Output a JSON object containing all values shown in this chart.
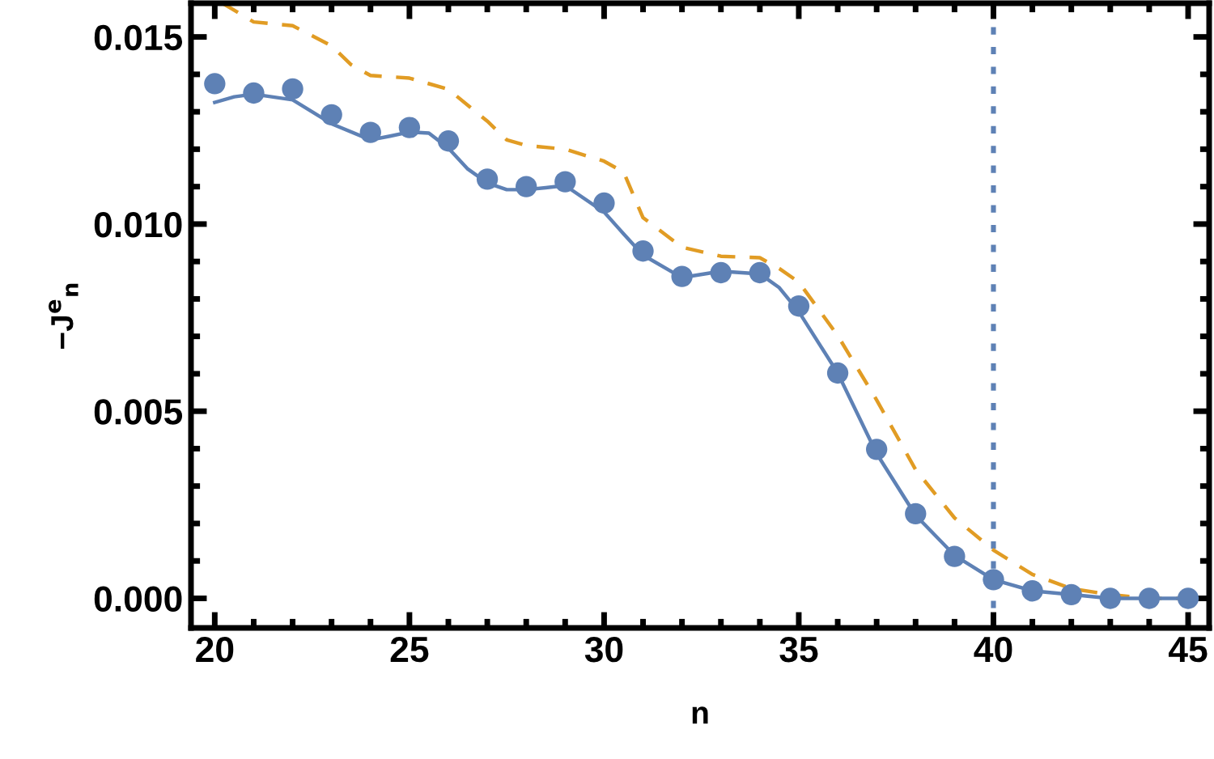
{
  "chart_data": {
    "type": "line",
    "xlabel": "n",
    "ylabel": "−J$^{e}$$_{n}$",
    "xlim": [
      19.39,
      45.54
    ],
    "ylim": [
      -0.00079,
      0.0159
    ],
    "xticks": [
      20,
      25,
      30,
      35,
      40,
      45
    ],
    "yticks": [
      {
        "value": 0,
        "label": "0.000"
      },
      {
        "value": 0.005,
        "label": "0.005"
      },
      {
        "value": 0.01,
        "label": "0.010"
      },
      {
        "value": 0.015,
        "label": "0.015"
      }
    ],
    "grid": false,
    "legend": false,
    "ref_lines": [
      {
        "axis": "x",
        "value": 40,
        "color": "#5e81b5",
        "line_style": "dotted"
      }
    ],
    "series": [
      {
        "color": "#e19c24",
        "line_style": "dashed",
        "x": [
          20.2,
          21,
          22,
          23,
          23.5,
          24,
          25,
          26,
          27,
          27.5,
          28,
          29,
          30,
          30.5,
          31,
          32,
          33,
          34,
          34.5,
          35,
          36,
          37,
          38,
          39,
          40,
          41,
          42,
          43,
          44,
          45
        ],
        "values": [
          0.0159,
          0.0154,
          0.0153,
          0.01476,
          0.01426,
          0.01397,
          0.0139,
          0.0136,
          0.01275,
          0.01225,
          0.0121,
          0.012,
          0.01168,
          0.01139,
          0.01017,
          0.00938,
          0.00914,
          0.0091,
          0.00881,
          0.00845,
          0.00702,
          0.0053,
          0.00344,
          0.00215,
          0.00129,
          0.00064,
          0.00026,
          0.0001,
          0,
          0
        ]
      },
      {
        "color": "#5e81b5",
        "line_style": "solid",
        "x": [
          20,
          20.5,
          21,
          22,
          22.5,
          23,
          24,
          24.5,
          25,
          25.5,
          26,
          26.5,
          27,
          27.5,
          28,
          28.5,
          29,
          30,
          30.5,
          31,
          32,
          33,
          34,
          34.5,
          35,
          36,
          37,
          38,
          39,
          40,
          41,
          42,
          43,
          44,
          45
        ],
        "values": [
          0.01325,
          0.0134,
          0.01347,
          0.01332,
          0.013,
          0.01268,
          0.01225,
          0.01235,
          0.01246,
          0.01243,
          0.01203,
          0.01147,
          0.0111,
          0.01092,
          0.01092,
          0.01097,
          0.01103,
          0.01032,
          0.00974,
          0.00917,
          0.00857,
          0.00874,
          0.00867,
          0.0083,
          0.00766,
          0.00602,
          0.00387,
          0.00222,
          0.00115,
          0.0005,
          0.0002,
          0.0001,
          0,
          0,
          0
        ]
      },
      {
        "type": "scatter",
        "color": "#5e81b5",
        "marker": "circle",
        "x": [
          20,
          21,
          22,
          23,
          24,
          25,
          26,
          27,
          28,
          29,
          30,
          31,
          32,
          33,
          34,
          35,
          36,
          37,
          38,
          39,
          40,
          41,
          42,
          43,
          44,
          45
        ],
        "values": [
          0.01375,
          0.0135,
          0.01361,
          0.01292,
          0.01245,
          0.01258,
          0.01222,
          0.0112,
          0.011,
          0.01113,
          0.01056,
          0.00928,
          0.0086,
          0.0087,
          0.0087,
          0.00781,
          0.00602,
          0.00398,
          0.00226,
          0.00112,
          0.0005,
          0.0002,
          0.0001,
          0,
          0,
          0
        ]
      }
    ]
  }
}
